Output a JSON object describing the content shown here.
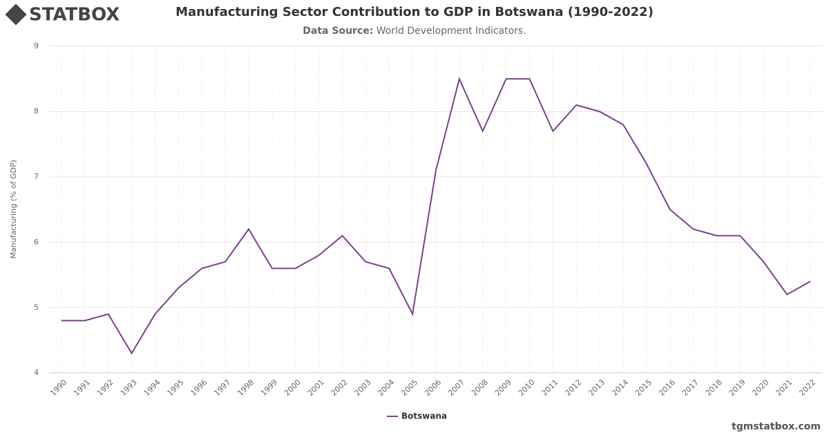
{
  "logo": "STATBOX",
  "footer": "tgmstatbox.com",
  "chart_data": {
    "type": "line",
    "title": "Manufacturing Sector Contribution to GDP in Botswana (1990-2022)",
    "subtitle_label": "Data Source:",
    "subtitle": "World Development Indicators.",
    "y_label": "Manufacturing (% of GDP)",
    "categories": [
      "1990",
      "1991",
      "1992",
      "1993",
      "1994",
      "1995",
      "1996",
      "1997",
      "1998",
      "1999",
      "2000",
      "2001",
      "2002",
      "2003",
      "2004",
      "2005",
      "2006",
      "2007",
      "2008",
      "2009",
      "2010",
      "2011",
      "2012",
      "2013",
      "2014",
      "2015",
      "2016",
      "2017",
      "2018",
      "2019",
      "2020",
      "2021",
      "2022"
    ],
    "series": [
      {
        "name": "Botswana",
        "color": "#7b3f8c",
        "values": [
          4.8,
          4.8,
          4.9,
          4.3,
          4.9,
          5.3,
          5.6,
          5.7,
          6.2,
          5.6,
          5.6,
          5.8,
          6.1,
          5.7,
          5.6,
          4.9,
          7.1,
          8.5,
          7.7,
          8.5,
          8.5,
          7.7,
          8.1,
          8.0,
          7.8,
          7.2,
          6.5,
          6.2,
          6.1,
          6.1,
          5.7,
          5.2,
          5.4
        ]
      }
    ],
    "ylim": [
      4,
      9
    ],
    "yticks": [
      4,
      5,
      6,
      7,
      8,
      9
    ],
    "grid": true
  }
}
